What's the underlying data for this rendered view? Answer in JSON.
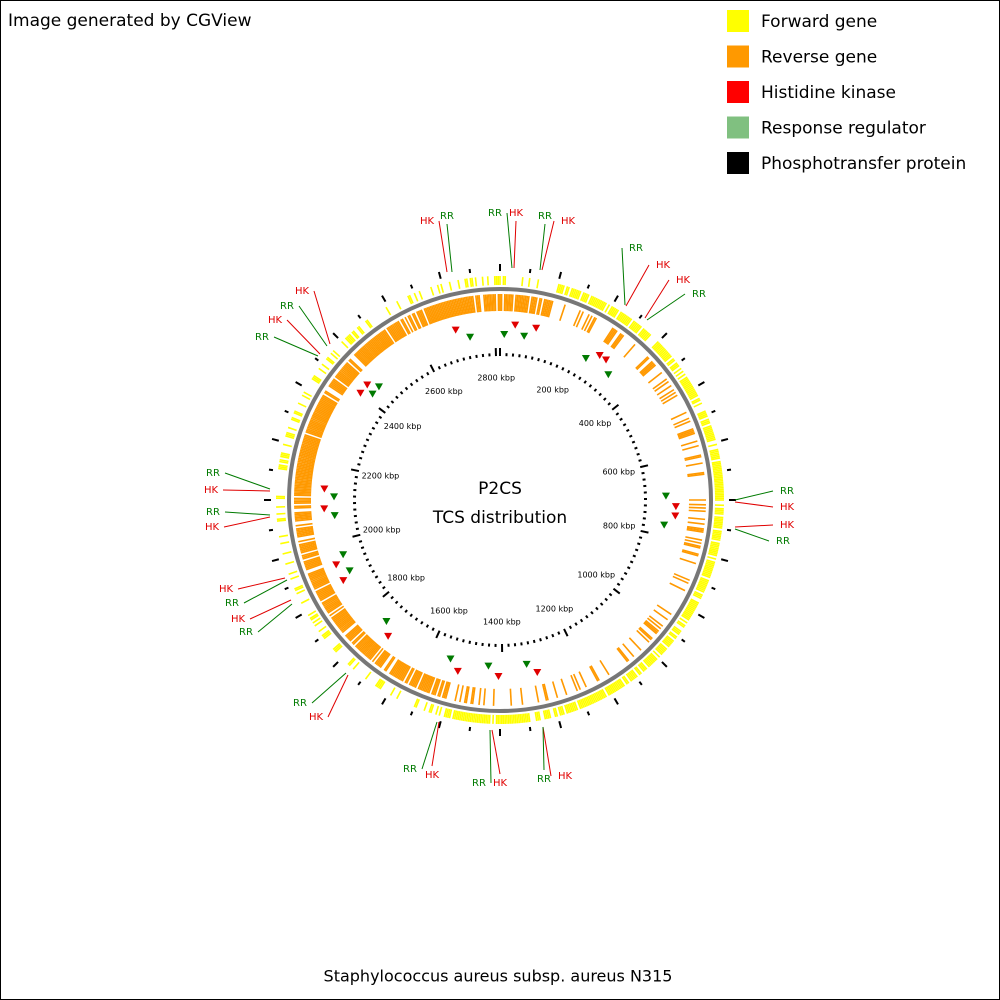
{
  "header": {
    "credit": "Image generated by CGView"
  },
  "legend": [
    {
      "label": "Forward gene",
      "color": "#ffff00"
    },
    {
      "label": "Reverse gene",
      "color": "#ff9900"
    },
    {
      "label": "Histidine kinase",
      "color": "#ff0000"
    },
    {
      "label": "Response regulator",
      "color": "#80c080"
    },
    {
      "label": "Phosphotransfer protein",
      "color": "#000000"
    }
  ],
  "center": {
    "title": "P2CS",
    "subtitle": "TCS distribution"
  },
  "ruler": [
    "200 kbp",
    "400 kbp",
    "600 kbp",
    "800 kbp",
    "1000 kbp",
    "1200 kbp",
    "1400 kbp",
    "1600 kbp",
    "1800 kbp",
    "2000 kbp",
    "2200 kbp",
    "2400 kbp",
    "2600 kbp",
    "2800 kbp"
  ],
  "callouts": [
    {
      "label": "HK",
      "color": "#e00000"
    },
    {
      "label": "RR",
      "color": "#007a00"
    },
    {
      "label": "RR",
      "color": "#007a00"
    },
    {
      "label": "HK",
      "color": "#e00000"
    },
    {
      "label": "RR",
      "color": "#007a00"
    },
    {
      "label": "HK",
      "color": "#e00000"
    },
    {
      "label": "RR",
      "color": "#007a00"
    },
    {
      "label": "HK",
      "color": "#e00000"
    },
    {
      "label": "HK",
      "color": "#e00000"
    },
    {
      "label": "RR",
      "color": "#007a00"
    },
    {
      "label": "RR",
      "color": "#007a00"
    },
    {
      "label": "HK",
      "color": "#e00000"
    },
    {
      "label": "HK",
      "color": "#e00000"
    },
    {
      "label": "RR",
      "color": "#007a00"
    },
    {
      "label": "HK",
      "color": "#e00000"
    },
    {
      "label": "RR",
      "color": "#007a00"
    },
    {
      "label": "HK",
      "color": "#e00000"
    },
    {
      "label": "RR",
      "color": "#007a00"
    },
    {
      "label": "HK",
      "color": "#e00000"
    },
    {
      "label": "RR",
      "color": "#007a00"
    },
    {
      "label": "HK",
      "color": "#e00000"
    },
    {
      "label": "RR",
      "color": "#007a00"
    },
    {
      "label": "HK",
      "color": "#e00000"
    },
    {
      "label": "RR",
      "color": "#007a00"
    },
    {
      "label": "HK",
      "color": "#e00000"
    },
    {
      "label": "RR",
      "color": "#007a00"
    },
    {
      "label": "RR",
      "color": "#007a00"
    },
    {
      "label": "HK",
      "color": "#e00000"
    },
    {
      "label": "RR",
      "color": "#007a00"
    },
    {
      "label": "HK",
      "color": "#e00000"
    },
    {
      "label": "HK",
      "color": "#e00000"
    },
    {
      "label": "RR",
      "color": "#007a00"
    },
    {
      "label": "HK",
      "color": "#e00000"
    },
    {
      "label": "RR",
      "color": "#007a00"
    }
  ],
  "footer": "Staphylococcus aureus subsp. aureus N315"
}
